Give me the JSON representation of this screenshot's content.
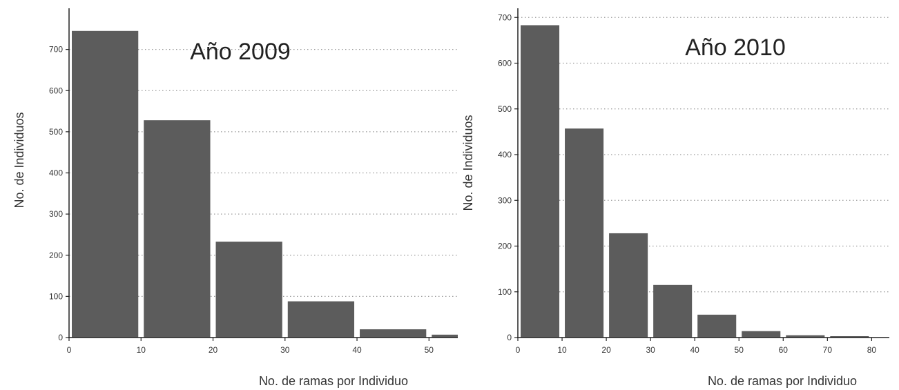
{
  "chart_data": [
    {
      "type": "bar",
      "title": "Año 2009",
      "xlabel": "No. de ramas por Individuo",
      "ylabel": "No. de Individuos",
      "xlim": [
        0,
        54
      ],
      "ylim": [
        0,
        800
      ],
      "xticks": [
        0,
        10,
        20,
        30,
        40,
        50
      ],
      "yticks": [
        0,
        100,
        200,
        300,
        400,
        500,
        600,
        700
      ],
      "grid": "horizontal-dotted",
      "bar_color": "#5c5c5c",
      "bins": [
        {
          "start": 0,
          "end": 10,
          "value": 745
        },
        {
          "start": 10,
          "end": 20,
          "value": 528
        },
        {
          "start": 20,
          "end": 30,
          "value": 233
        },
        {
          "start": 30,
          "end": 40,
          "value": 88
        },
        {
          "start": 40,
          "end": 50,
          "value": 20
        },
        {
          "start": 50,
          "end": 60,
          "value": 7
        }
      ]
    },
    {
      "type": "bar",
      "title": "Año 2010",
      "xlabel": "No. de ramas por Individuo",
      "ylabel": "No. de Individuos",
      "xlim": [
        0,
        84
      ],
      "ylim": [
        0,
        720
      ],
      "xticks": [
        0,
        10,
        20,
        30,
        40,
        50,
        60,
        70,
        80
      ],
      "yticks": [
        0,
        100,
        200,
        300,
        400,
        500,
        600,
        700
      ],
      "grid": "horizontal-dotted",
      "bar_color": "#5c5c5c",
      "bins": [
        {
          "start": 0,
          "end": 10,
          "value": 683
        },
        {
          "start": 10,
          "end": 20,
          "value": 457
        },
        {
          "start": 20,
          "end": 30,
          "value": 228
        },
        {
          "start": 30,
          "end": 40,
          "value": 115
        },
        {
          "start": 40,
          "end": 50,
          "value": 50
        },
        {
          "start": 50,
          "end": 60,
          "value": 14
        },
        {
          "start": 60,
          "end": 70,
          "value": 5
        },
        {
          "start": 70,
          "end": 80,
          "value": 3
        }
      ]
    }
  ]
}
